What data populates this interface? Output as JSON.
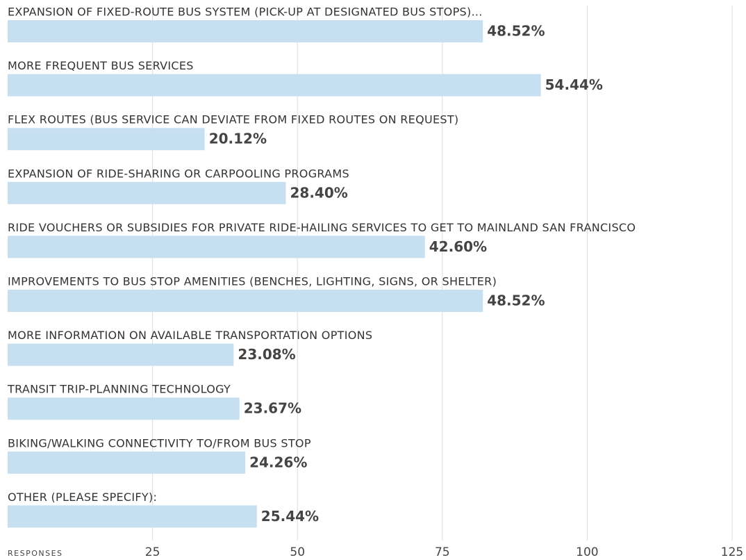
{
  "chart_data": {
    "type": "bar",
    "orientation": "horizontal",
    "categories": [
      "EXPANSION OF FIXED-ROUTE BUS SYSTEM (PICK-UP AT DESIGNATED BUS STOPS)...",
      "MORE FREQUENT BUS SERVICES",
      "FLEX ROUTES (BUS SERVICE CAN DEVIATE FROM FIXED ROUTES ON REQUEST)",
      "EXPANSION OF RIDE-SHARING OR CARPOOLING PROGRAMS",
      "RIDE VOUCHERS OR SUBSIDIES FOR PRIVATE RIDE-HAILING SERVICES TO GET TO MAINLAND SAN FRANCISCO",
      "IMPROVEMENTS TO BUS STOP AMENITIES (BENCHES, LIGHTING, SIGNS, OR SHELTER)",
      "MORE INFORMATION ON AVAILABLE TRANSPORTATION OPTIONS",
      "TRANSIT TRIP-PLANNING TECHNOLOGY",
      "BIKING/WALKING CONNECTIVITY TO/FROM BUS STOP",
      "OTHER (PLEASE SPECIFY):"
    ],
    "values": [
      82,
      92,
      34,
      48,
      72,
      82,
      39,
      40,
      41,
      43
    ],
    "value_labels": [
      "48.52%",
      "54.44%",
      "20.12%",
      "28.40%",
      "42.60%",
      "48.52%",
      "23.08%",
      "23.67%",
      "24.26%",
      "25.44%"
    ],
    "color": "#c6e0f2",
    "x_label": "RESPONSES",
    "xlim": [
      0,
      125
    ],
    "xticks": [
      25,
      50,
      75,
      100,
      125
    ],
    "grid": true
  }
}
